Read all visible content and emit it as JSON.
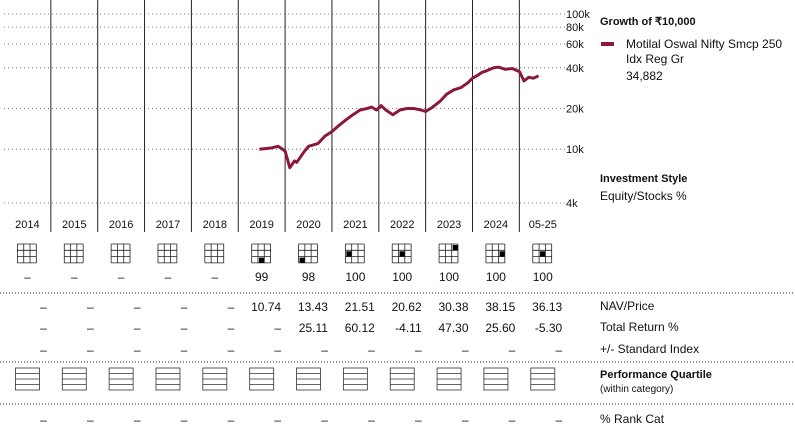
{
  "legend": {
    "title": "Growth of ₹10,000",
    "fund_name": "Motilal Oswal Nifty Smcp 250 Idx Reg Gr",
    "fund_value": "34,882",
    "fund_color": "#8b1a3a"
  },
  "investment_style": {
    "title": "Investment Style",
    "subtitle": "Equity/Stocks %"
  },
  "row_labels": {
    "nav": "NAV/Price",
    "total_return": "Total Return %",
    "vs_index": "+/- Standard Index",
    "quartile_title": "Performance Quartile",
    "quartile_sub": "(within category)",
    "rank": "% Rank Cat"
  },
  "columns": [
    {
      "label": "2014",
      "style_box": false,
      "equity": "–",
      "nav": "–",
      "total_return": "–",
      "vs_index": "–",
      "rank": "–"
    },
    {
      "label": "2015",
      "style_box": false,
      "equity": "–",
      "nav": "–",
      "total_return": "–",
      "vs_index": "–",
      "rank": "–"
    },
    {
      "label": "2016",
      "style_box": false,
      "equity": "–",
      "nav": "–",
      "total_return": "–",
      "vs_index": "–",
      "rank": "–"
    },
    {
      "label": "2017",
      "style_box": false,
      "equity": "–",
      "nav": "–",
      "total_return": "–",
      "vs_index": "–",
      "rank": "–"
    },
    {
      "label": "2018",
      "style_box": false,
      "equity": "–",
      "nav": "–",
      "total_return": "–",
      "vs_index": "–",
      "rank": "–"
    },
    {
      "label": "2019",
      "style_box": true,
      "style_cell": "small-blend",
      "equity": "99",
      "nav": "10.74",
      "total_return": "–",
      "vs_index": "–",
      "rank": "–"
    },
    {
      "label": "2020",
      "style_box": true,
      "style_cell": "small-value",
      "equity": "98",
      "nav": "13.43",
      "total_return": "25.11",
      "vs_index": "–",
      "rank": "–"
    },
    {
      "label": "2021",
      "style_box": true,
      "style_cell": "mid-value",
      "equity": "100",
      "nav": "21.51",
      "total_return": "60.12",
      "vs_index": "–",
      "rank": "–"
    },
    {
      "label": "2022",
      "style_box": true,
      "style_cell": "mid-blend",
      "equity": "100",
      "nav": "20.62",
      "total_return": "-4.11",
      "vs_index": "–",
      "rank": "–"
    },
    {
      "label": "2023",
      "style_box": true,
      "style_cell": "large-growth",
      "equity": "100",
      "nav": "30.38",
      "total_return": "47.30",
      "vs_index": "–",
      "rank": "–"
    },
    {
      "label": "2024",
      "style_box": true,
      "style_cell": "mid-growth",
      "equity": "100",
      "nav": "38.15",
      "total_return": "25.60",
      "vs_index": "–",
      "rank": "–"
    },
    {
      "label": "05-25",
      "style_box": true,
      "style_cell": "mid-blend",
      "equity": "100",
      "nav": "36.13",
      "total_return": "-5.30",
      "vs_index": "–",
      "rank": "–"
    }
  ],
  "chart_data": {
    "type": "line",
    "title": "Growth of ₹10,000",
    "y_scale": "log",
    "ylim": [
      4000,
      100000
    ],
    "y_ticks": [
      "4k",
      "10k",
      "20k",
      "40k",
      "60k",
      "80k",
      "100k"
    ],
    "y_tick_values": [
      4000,
      10000,
      20000,
      40000,
      60000,
      80000,
      100000
    ],
    "x_range": [
      "2014-01",
      "2025-05"
    ],
    "grid": "dotted horizontal at y ticks, solid vertical year separators",
    "series": [
      {
        "name": "Motilal Oswal Nifty Smcp 250 Idx Reg Gr",
        "color": "#8b1a3a",
        "x": [
          2019.45,
          2019.7,
          2019.85,
          2020.0,
          2020.1,
          2020.2,
          2020.25,
          2020.4,
          2020.5,
          2020.7,
          2020.85,
          2021.0,
          2021.15,
          2021.3,
          2021.45,
          2021.6,
          2021.75,
          2021.85,
          2021.95,
          2022.05,
          2022.15,
          2022.3,
          2022.45,
          2022.6,
          2022.75,
          2022.9,
          2023.0,
          2023.15,
          2023.3,
          2023.45,
          2023.6,
          2023.75,
          2023.9,
          2024.0,
          2024.1,
          2024.2,
          2024.3,
          2024.45,
          2024.55,
          2024.7,
          2024.85,
          2025.0,
          2025.1,
          2025.2,
          2025.3,
          2025.41
        ],
        "values": [
          10000,
          10200,
          10500,
          9700,
          7300,
          8200,
          8000,
          9500,
          10500,
          11000,
          12500,
          13500,
          15000,
          16500,
          18000,
          19500,
          20000,
          20500,
          19500,
          21000,
          19500,
          18000,
          19500,
          20000,
          20000,
          19500,
          19000,
          20500,
          22500,
          25500,
          27500,
          28500,
          31000,
          33500,
          35000,
          37000,
          38000,
          40000,
          40500,
          39000,
          39500,
          37500,
          32000,
          34000,
          33500,
          34882
        ]
      }
    ]
  }
}
